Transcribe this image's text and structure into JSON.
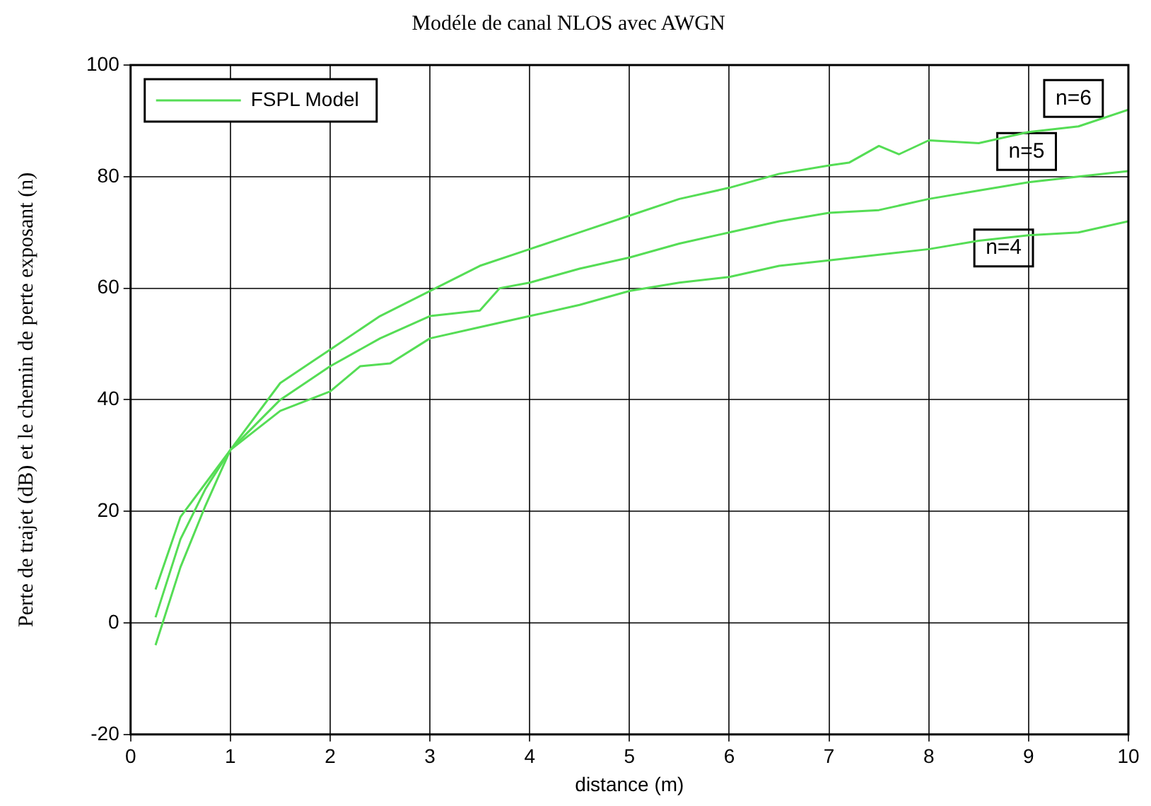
{
  "chart_data": {
    "type": "line",
    "title": "Modéle de canal NLOS avec AWGN",
    "xlabel": "distance (m)",
    "ylabel": "Perte de trajet (dB) et le chemin de perte exposant (n)",
    "xlim": [
      0,
      10
    ],
    "xticks": [
      0,
      1,
      2,
      3,
      4,
      5,
      6,
      7,
      8,
      9,
      10
    ],
    "ylim": [
      -20,
      100
    ],
    "yticks": [
      -20,
      0,
      20,
      40,
      60,
      80,
      100
    ],
    "grid": true,
    "legend": "top left",
    "marker": "none",
    "line_style": "solid",
    "series": [
      {
        "name": "FSPL Model",
        "color": "#55dd55",
        "x": [
          0.25,
          0.5,
          0.75,
          1,
          1.5,
          2,
          2.3,
          2.6,
          3,
          3.5,
          4,
          4.5,
          5,
          5.5,
          6,
          6.5,
          7,
          7.5,
          8,
          8.5,
          9,
          9.5,
          10
        ],
        "values": [
          6,
          19,
          25,
          31,
          38,
          41.5,
          46,
          46.5,
          51,
          53,
          55,
          57,
          59.5,
          61,
          62,
          64,
          65,
          66,
          67,
          68.5,
          69.5,
          70,
          72
        ]
      },
      {
        "color": "#55dd55",
        "x": [
          0.25,
          0.5,
          0.75,
          1,
          1.5,
          2,
          2.5,
          3,
          3.5,
          3.7,
          4,
          4.5,
          5,
          5.5,
          6,
          6.5,
          7,
          7.5,
          8,
          8.5,
          9,
          9.5,
          10
        ],
        "values": [
          1,
          15,
          24,
          31,
          40,
          46,
          51,
          55,
          56,
          60,
          61,
          63.5,
          65.5,
          68,
          70,
          72,
          73.5,
          74,
          76,
          77.5,
          79,
          80,
          81
        ]
      },
      {
        "color": "#55dd55",
        "x": [
          0.25,
          0.5,
          0.75,
          1,
          1.5,
          2,
          2.5,
          3,
          3.5,
          4,
          4.5,
          5,
          5.5,
          6,
          6.5,
          7,
          7.2,
          7.5,
          7.7,
          8,
          8.5,
          9,
          9.5,
          10
        ],
        "values": [
          -4,
          10,
          21,
          31,
          43,
          49,
          55,
          59.5,
          64,
          67,
          70,
          73,
          76,
          78,
          80.5,
          82,
          82.5,
          85.5,
          84,
          86.5,
          86,
          88,
          89,
          92
        ]
      }
    ],
    "annotations": [
      {
        "text": "n=6",
        "x": 9.45,
        "y": 94
      },
      {
        "text": "n=5",
        "x": 8.98,
        "y": 84.5
      },
      {
        "text": "n=4",
        "x": 8.75,
        "y": 67.2
      }
    ]
  }
}
